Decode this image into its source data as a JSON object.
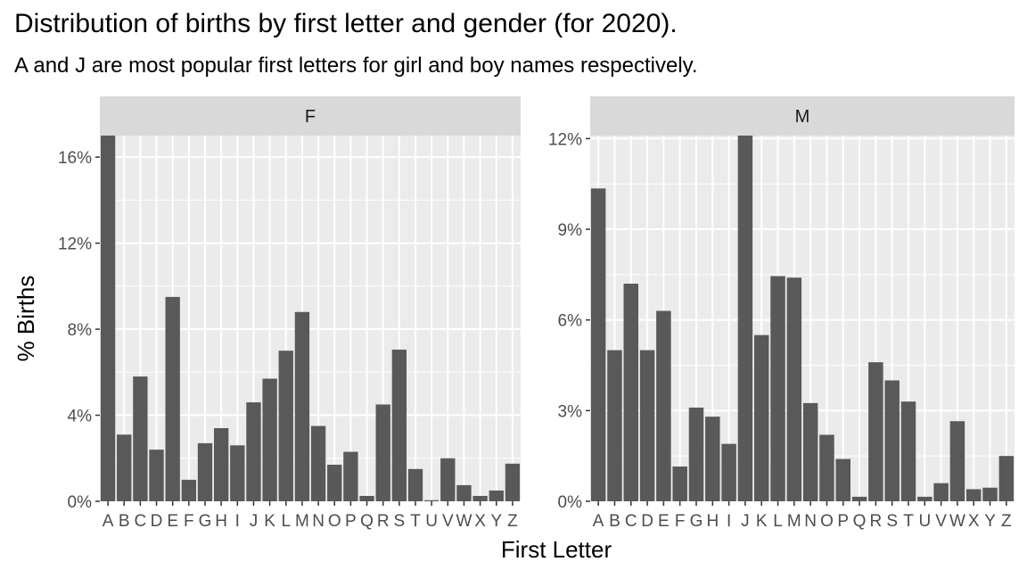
{
  "title": "Distribution of births by first letter and gender (for 2020).",
  "subtitle": "A and J are most popular first letters for girl and boy names respectively.",
  "chart_data": {
    "type": "bar",
    "xlabel": "First Letter",
    "ylabel": "% Births",
    "grid": true,
    "categories": [
      "A",
      "B",
      "C",
      "D",
      "E",
      "F",
      "G",
      "H",
      "I",
      "J",
      "K",
      "L",
      "M",
      "N",
      "O",
      "P",
      "Q",
      "R",
      "S",
      "T",
      "U",
      "V",
      "W",
      "X",
      "Y",
      "Z"
    ],
    "facets": [
      {
        "label": "F",
        "ylim": [
          0,
          17.0
        ],
        "yticks": [
          0,
          4,
          8,
          12,
          16
        ],
        "ytick_labels": [
          "0%",
          "4%",
          "8%",
          "12%",
          "16%"
        ],
        "values": [
          17.0,
          3.1,
          5.8,
          2.4,
          9.5,
          1.0,
          2.7,
          3.4,
          2.6,
          4.6,
          5.7,
          7.0,
          8.8,
          3.5,
          1.7,
          2.3,
          0.25,
          4.5,
          7.05,
          1.5,
          0.05,
          2.0,
          0.75,
          0.25,
          0.5,
          1.75
        ]
      },
      {
        "label": "M",
        "ylim": [
          0,
          12.1
        ],
        "yticks": [
          0,
          3,
          6,
          9,
          12
        ],
        "ytick_labels": [
          "0%",
          "3%",
          "6%",
          "9%",
          "12%"
        ],
        "values": [
          10.35,
          5.0,
          7.2,
          5.0,
          6.3,
          1.15,
          3.1,
          2.8,
          1.9,
          12.1,
          5.5,
          7.45,
          7.4,
          3.25,
          2.2,
          1.4,
          0.15,
          4.6,
          4.0,
          3.3,
          0.15,
          0.6,
          2.65,
          0.4,
          0.45,
          1.5
        ]
      }
    ]
  }
}
